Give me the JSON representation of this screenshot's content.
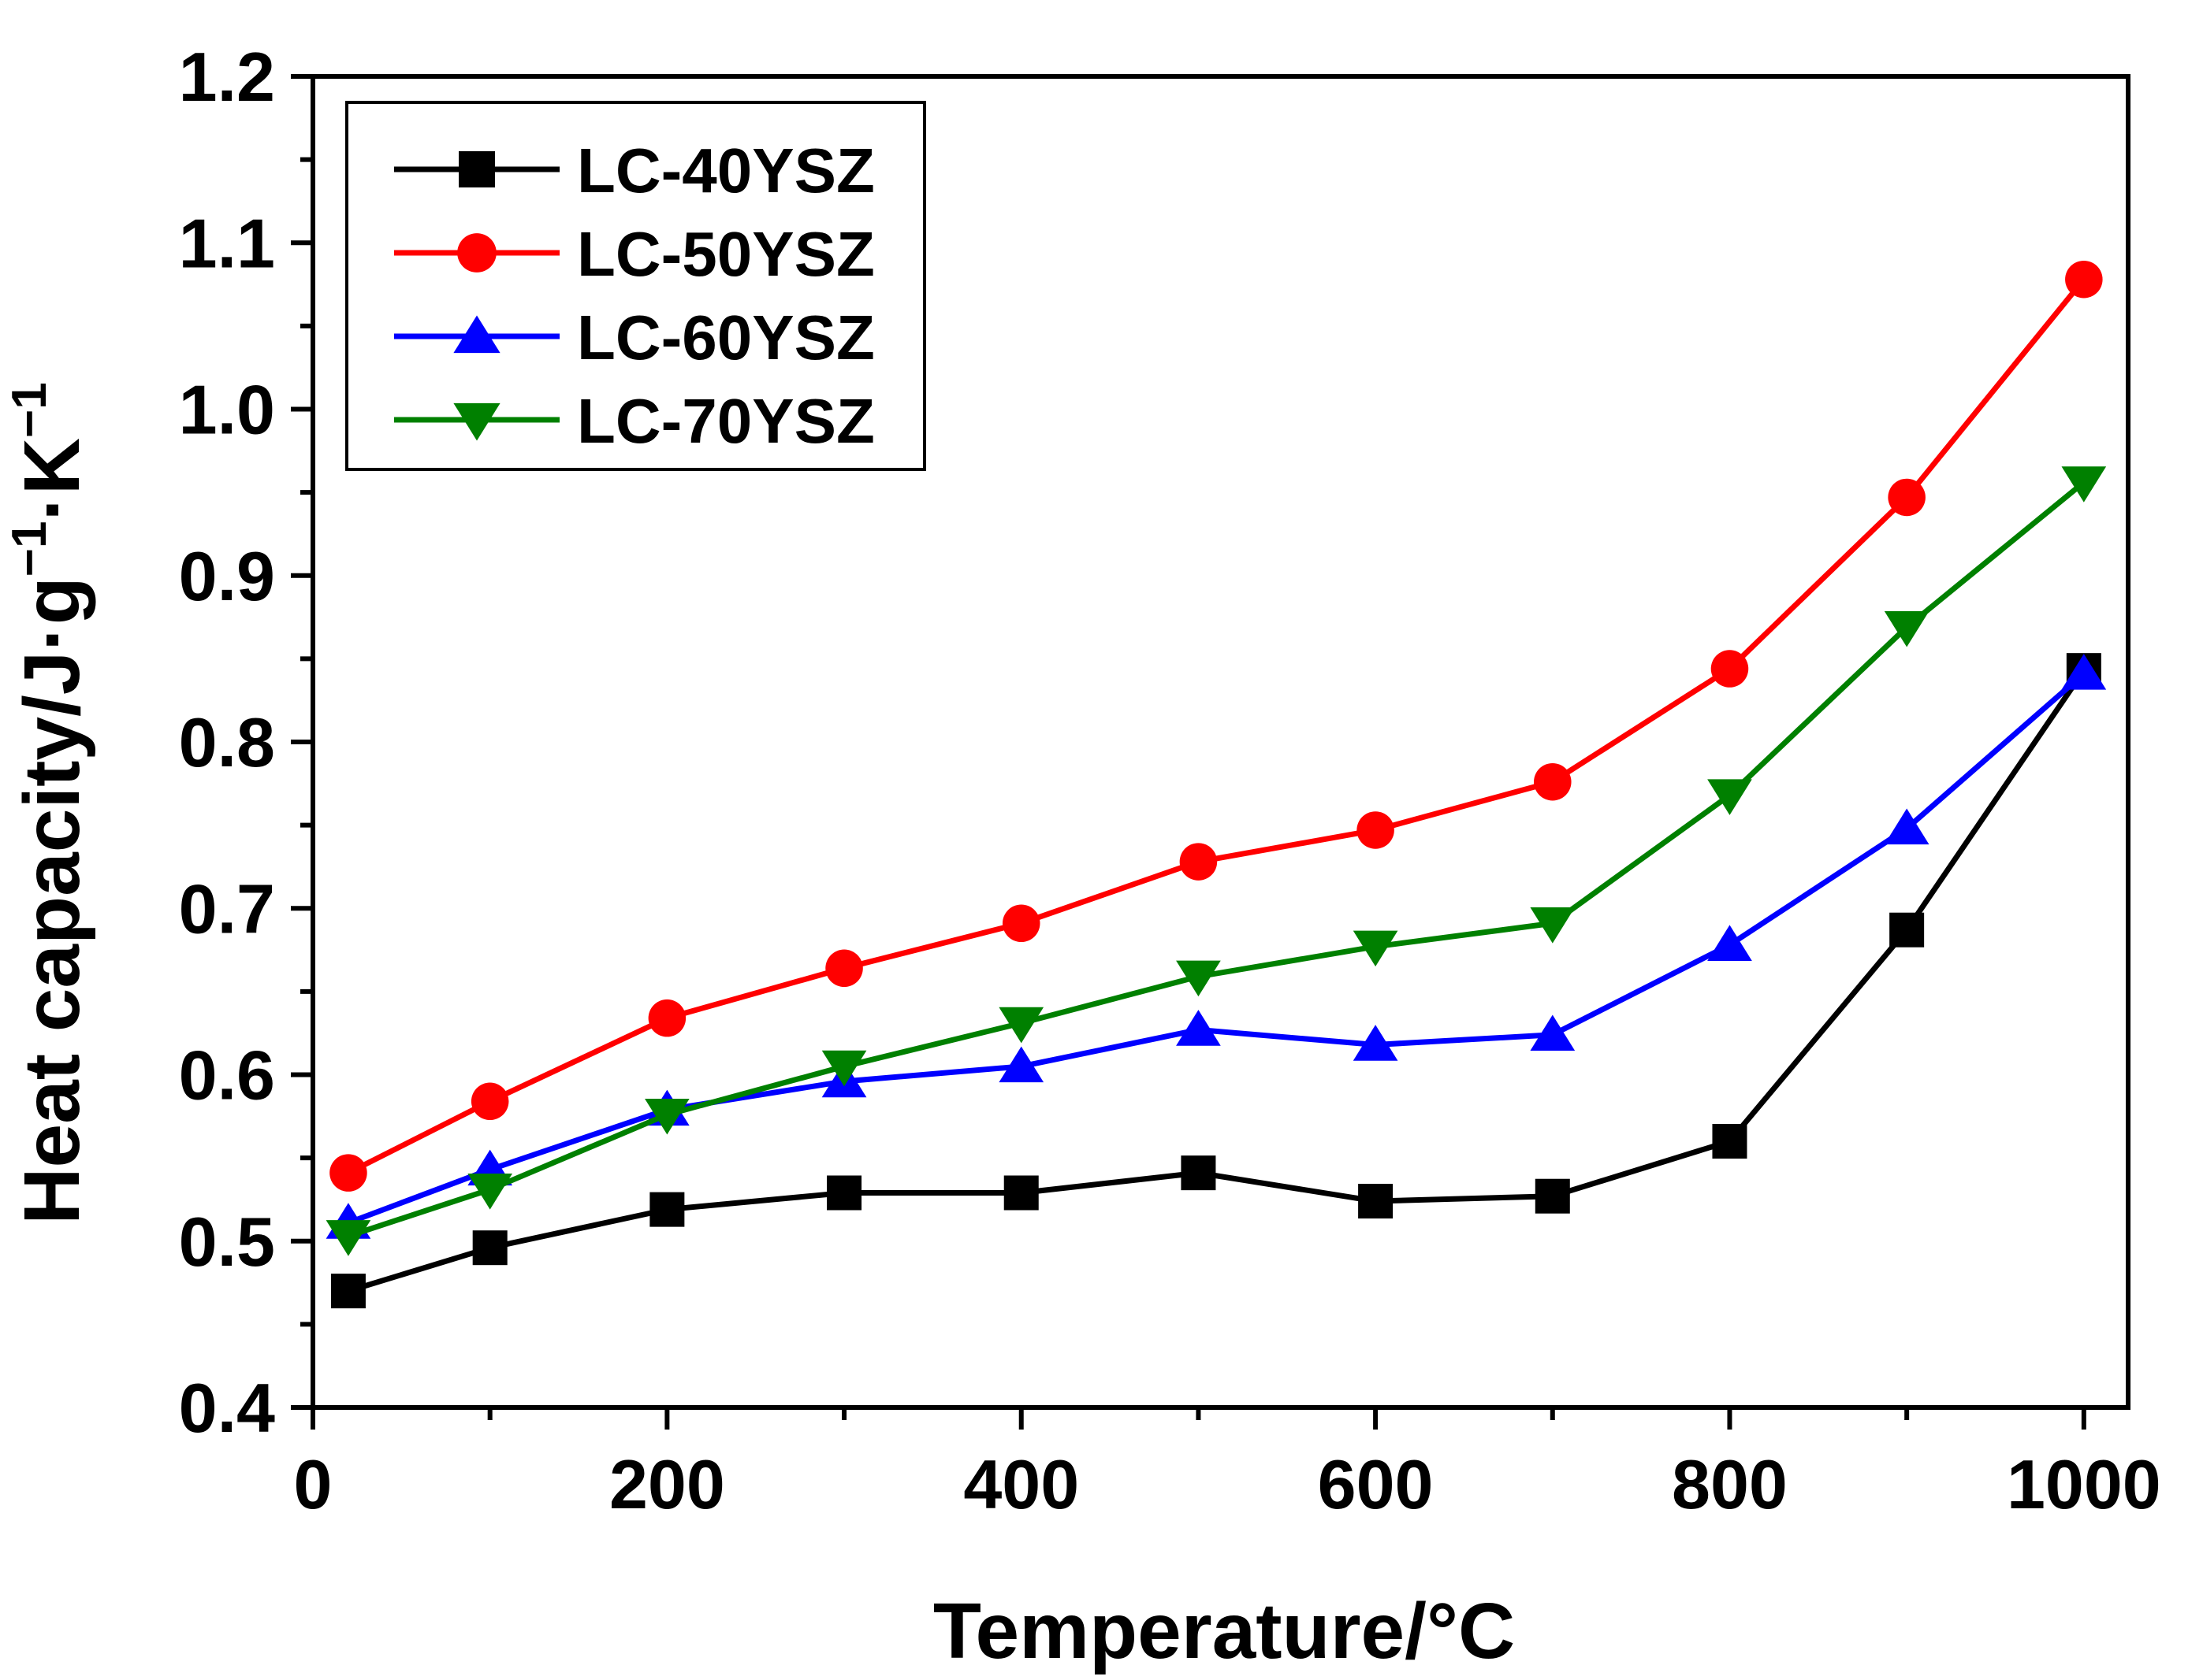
{
  "chart_data": {
    "type": "line",
    "xlabel": "Temperature/°C",
    "ylabel": {
      "main": "Heat capacity/J·g",
      "sup1": "−1",
      "mid": "·K",
      "sup2": "−1"
    },
    "xlim": [
      0,
      1025
    ],
    "ylim": [
      0.4,
      1.2
    ],
    "xticks": [
      0,
      200,
      400,
      600,
      800,
      1000
    ],
    "xtick_labels": [
      "0",
      "200",
      "400",
      "600",
      "800",
      "1000"
    ],
    "yticks": [
      0.4,
      0.5,
      0.6,
      0.7,
      0.8,
      0.9,
      1.0,
      1.1,
      1.2
    ],
    "ytick_labels": [
      "0.4",
      "0.5",
      "0.6",
      "0.7",
      "0.8",
      "0.9",
      "1.0",
      "1.1",
      "1.2"
    ],
    "grid": false,
    "legend_position": "top-left",
    "x": [
      20,
      100,
      200,
      300,
      400,
      500,
      600,
      700,
      800,
      900,
      1000
    ],
    "series": [
      {
        "name": "LC-40YSZ",
        "color": "#000000",
        "marker": "square",
        "values": [
          0.47,
          0.496,
          0.519,
          0.529,
          0.529,
          0.541,
          0.524,
          0.527,
          0.56,
          0.687,
          0.843
        ]
      },
      {
        "name": "LC-50YSZ",
        "color": "#ff0000",
        "marker": "circle",
        "values": [
          0.541,
          0.584,
          0.634,
          0.664,
          0.691,
          0.728,
          0.747,
          0.776,
          0.844,
          0.947,
          1.078
        ]
      },
      {
        "name": "LC-60YSZ",
        "color": "#0000ff",
        "marker": "triangle-up",
        "values": [
          0.511,
          0.543,
          0.579,
          0.596,
          0.605,
          0.627,
          0.618,
          0.624,
          0.678,
          0.748,
          0.841
        ]
      },
      {
        "name": "LC-70YSZ",
        "color": "#008000",
        "marker": "triangle-down",
        "values": [
          0.503,
          0.531,
          0.576,
          0.605,
          0.631,
          0.659,
          0.677,
          0.691,
          0.768,
          0.869,
          0.956
        ]
      }
    ]
  }
}
